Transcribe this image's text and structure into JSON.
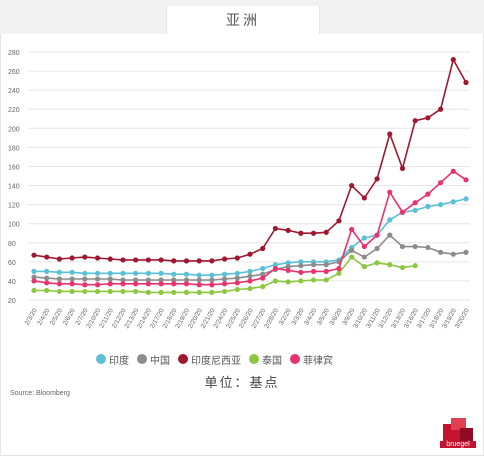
{
  "title": "亚洲",
  "unit_label": "单位：基点",
  "source": "Source: Bloomberg",
  "logo_text": "bruegel",
  "colors": {
    "india": "#5bc0d6",
    "china": "#8c8c8c",
    "indonesia": "#a01830",
    "thailand": "#8dc63f",
    "philippines": "#e8336d",
    "grid": "#e6e6e6",
    "axis_text": "#666666"
  },
  "legend": [
    {
      "label": "印度",
      "color": "#5bc0d6"
    },
    {
      "label": "中国",
      "color": "#8c8c8c"
    },
    {
      "label": "印度尼西亚",
      "color": "#a01830"
    },
    {
      "label": "泰国",
      "color": "#8dc63f"
    },
    {
      "label": "菲律宾",
      "color": "#e8336d"
    }
  ],
  "chart_data": {
    "type": "line",
    "ylim": [
      20,
      280
    ],
    "yticks": [
      20,
      40,
      60,
      80,
      100,
      120,
      140,
      160,
      180,
      200,
      220,
      240,
      260,
      280
    ],
    "grid": true,
    "categories": [
      "2/3/20",
      "2/4/20",
      "2/5/20",
      "2/6/20",
      "2/7/20",
      "2/10/20",
      "2/11/20",
      "2/12/20",
      "2/13/20",
      "2/14/20",
      "2/17/20",
      "2/18/20",
      "2/19/20",
      "2/20/20",
      "2/21/20",
      "2/24/20",
      "2/25/20",
      "2/26/20",
      "2/27/20",
      "2/28/20",
      "3/2/20",
      "3/3/20",
      "3/4/20",
      "3/5/20",
      "3/6/20",
      "3/9/20",
      "3/10/20",
      "3/11/20",
      "3/12/20",
      "3/13/20",
      "3/16/20",
      "3/17/20",
      "3/18/20",
      "3/19/20",
      "3/20/20"
    ],
    "series": [
      {
        "name": "印度",
        "color": "#5bc0d6",
        "values": [
          50,
          50,
          49,
          49,
          48,
          48,
          48,
          48,
          48,
          48,
          48,
          47,
          47,
          46,
          46,
          47,
          48,
          50,
          53,
          57,
          59,
          60,
          60,
          60,
          62,
          75,
          85,
          88,
          104,
          112,
          114,
          118,
          120,
          123,
          126
        ]
      },
      {
        "name": "中国",
        "color": "#8c8c8c",
        "values": [
          44,
          43,
          42,
          42,
          42,
          42,
          42,
          41,
          41,
          41,
          41,
          41,
          41,
          41,
          41,
          42,
          43,
          45,
          47,
          52,
          55,
          56,
          57,
          57,
          60,
          72,
          65,
          74,
          88,
          76,
          76,
          75,
          70,
          68,
          70
        ]
      },
      {
        "name": "印度尼西亚",
        "color": "#a01830",
        "values": [
          67,
          65,
          63,
          64,
          65,
          64,
          63,
          62,
          62,
          62,
          62,
          61,
          61,
          61,
          61,
          63,
          64,
          68,
          74,
          95,
          93,
          90,
          90,
          91,
          103,
          140,
          127,
          147,
          194,
          158,
          208,
          211,
          220,
          272,
          248
        ]
      },
      {
        "name": "泰国",
        "color": "#8dc63f",
        "values": [
          30,
          30,
          29,
          29,
          29,
          29,
          29,
          29,
          29,
          28,
          28,
          28,
          28,
          28,
          28,
          29,
          31,
          32,
          34,
          40,
          39,
          40,
          41,
          41,
          48,
          65,
          55,
          59,
          57,
          54,
          56,
          null,
          null,
          null,
          null
        ]
      },
      {
        "name": "菲律宾",
        "color": "#e8336d",
        "values": [
          40,
          38,
          37,
          37,
          36,
          36,
          37,
          37,
          37,
          37,
          37,
          37,
          37,
          36,
          36,
          37,
          38,
          40,
          43,
          53,
          51,
          49,
          50,
          50,
          53,
          94,
          76,
          88,
          133,
          112,
          122,
          131,
          143,
          155,
          146
        ]
      }
    ]
  }
}
